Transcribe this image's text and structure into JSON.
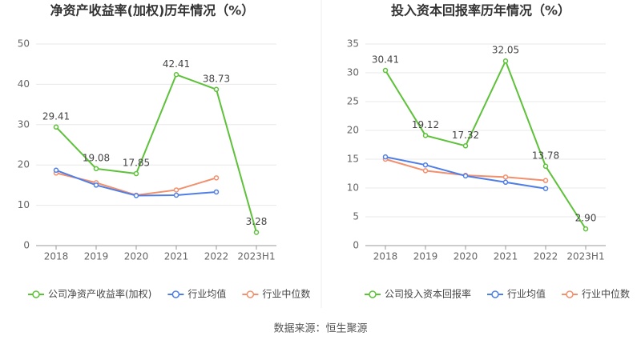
{
  "chart_data": [
    {
      "type": "line",
      "title": "净资产收益率(加权)历年情况（%）",
      "categories": [
        "2018",
        "2019",
        "2020",
        "2021",
        "2022",
        "2023H1"
      ],
      "ylim": [
        0,
        50
      ],
      "yticks": [
        0,
        10,
        20,
        30,
        40,
        50
      ],
      "grid": true,
      "series": [
        {
          "name": "公司净资产收益率(加权)",
          "color": "#5ec13a",
          "values": [
            29.41,
            19.08,
            17.85,
            42.41,
            38.73,
            3.28
          ],
          "value_labels": [
            "29.41",
            "19.08",
            "17.85",
            "42.41",
            "38.73",
            "3.28"
          ]
        },
        {
          "name": "行业均值",
          "color": "#4f7fe6",
          "values": [
            18.7,
            15.0,
            12.4,
            12.5,
            13.3,
            null
          ]
        },
        {
          "name": "行业中位数",
          "color": "#f28f6c",
          "values": [
            18.0,
            15.6,
            12.5,
            13.8,
            16.8,
            null
          ]
        }
      ]
    },
    {
      "type": "line",
      "title": "投入资本回报率历年情况（%）",
      "categories": [
        "2018",
        "2019",
        "2020",
        "2021",
        "2022",
        "2023H1"
      ],
      "ylim": [
        0,
        35
      ],
      "yticks": [
        0,
        5,
        10,
        15,
        20,
        25,
        30,
        35
      ],
      "grid": true,
      "series": [
        {
          "name": "公司投入资本回报率",
          "color": "#5ec13a",
          "values": [
            30.41,
            19.12,
            17.32,
            32.05,
            13.78,
            2.9
          ],
          "value_labels": [
            "30.41",
            "19.12",
            "17.32",
            "32.05",
            "13.78",
            "2.90"
          ]
        },
        {
          "name": "行业均值",
          "color": "#4f7fe6",
          "values": [
            15.4,
            14.0,
            12.1,
            11.0,
            9.9,
            null
          ]
        },
        {
          "name": "行业中位数",
          "color": "#f28f6c",
          "values": [
            15.0,
            13.0,
            12.2,
            11.9,
            11.3,
            null
          ]
        }
      ]
    }
  ],
  "source": "数据来源：恒生聚源"
}
